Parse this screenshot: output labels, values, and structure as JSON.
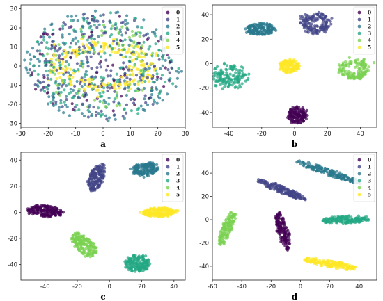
{
  "chart_data": [
    {
      "type": "scatter",
      "panel_label": "a",
      "xlim": [
        -30,
        30
      ],
      "ylim": [
        -32,
        32
      ],
      "xticks": [
        -30,
        -20,
        -10,
        0,
        10,
        20,
        30
      ],
      "yticks": [
        -30,
        -20,
        -10,
        0,
        10,
        20,
        30
      ],
      "legend": {
        "position": "top-right",
        "entries": [
          "0",
          "1",
          "2",
          "3",
          "4",
          "5"
        ]
      },
      "clusters": [
        {
          "label": "0",
          "shape": "diffuse",
          "cx": 0,
          "cy": 0,
          "r_in": 0,
          "r_out": 28,
          "n": 60
        },
        {
          "label": "1",
          "shape": "diffuse",
          "cx": 0,
          "cy": 0,
          "r_in": 0,
          "r_out": 28,
          "n": 180
        },
        {
          "label": "2",
          "shape": "diffuse",
          "cx": 0,
          "cy": 0,
          "r_in": 4,
          "r_out": 29,
          "n": 220
        },
        {
          "label": "3",
          "shape": "diffuse",
          "cx": 0,
          "cy": 0,
          "r_in": 4,
          "r_out": 28,
          "n": 180
        },
        {
          "label": "4",
          "shape": "diffuse",
          "cx": 0,
          "cy": 0,
          "r_in": 6,
          "r_out": 22,
          "n": 80
        },
        {
          "label": "5",
          "shape": "ring",
          "cx": 0,
          "cy": 0,
          "rx": 16,
          "ry": 11,
          "spread": 3,
          "n": 200
        }
      ]
    },
    {
      "type": "scatter",
      "panel_label": "b",
      "xlim": [
        -50,
        50
      ],
      "ylim": [
        -52,
        48
      ],
      "xticks": [
        -40,
        -20,
        0,
        20,
        40
      ],
      "yticks": [
        -40,
        -20,
        0,
        20,
        40
      ],
      "legend": {
        "position": "top-right",
        "entries": [
          "0",
          "1",
          "2",
          "3",
          "4",
          "5"
        ]
      },
      "clusters": [
        {
          "label": "0",
          "shape": "blob",
          "cx": 2,
          "cy": -42,
          "rx": 6,
          "ry": 7,
          "angle": 0,
          "n": 160
        },
        {
          "label": "1",
          "shape": "ring",
          "cx": 13,
          "cy": 33,
          "rx": 7,
          "ry": 6,
          "spread": 2.2,
          "n": 150
        },
        {
          "label": "2",
          "shape": "blob",
          "cx": -21,
          "cy": 28,
          "rx": 9,
          "ry": 5,
          "angle": 0,
          "n": 160
        },
        {
          "label": "3",
          "shape": "ring",
          "cx": -39,
          "cy": -11,
          "rx": 7,
          "ry": 6.5,
          "spread": 2.5,
          "n": 140
        },
        {
          "label": "4",
          "shape": "ring",
          "cx": 36,
          "cy": -5,
          "rx": 7,
          "ry": 6,
          "spread": 1.8,
          "n": 150
        },
        {
          "label": "5",
          "shape": "blob",
          "cx": -3,
          "cy": -2,
          "rx": 6,
          "ry": 5.5,
          "angle": 0,
          "n": 140
        }
      ]
    },
    {
      "type": "scatter",
      "panel_label": "c",
      "xlim": [
        -55,
        47
      ],
      "ylim": [
        -52,
        46
      ],
      "xticks": [
        -40,
        -20,
        0,
        20,
        40
      ],
      "yticks": [
        -40,
        -20,
        0,
        20,
        40
      ],
      "legend": {
        "position": "top-right",
        "entries": [
          "0",
          "1",
          "2",
          "3",
          "4",
          "5"
        ]
      },
      "clusters": [
        {
          "label": "0",
          "shape": "blob",
          "cx": -40,
          "cy": 1,
          "rx": 11,
          "ry": 4.5,
          "angle": -8,
          "n": 180
        },
        {
          "label": "1",
          "shape": "blob",
          "cx": -8,
          "cy": 27,
          "rx": 4.5,
          "ry": 11,
          "angle": -15,
          "n": 160
        },
        {
          "label": "2",
          "shape": "blob",
          "cx": 22,
          "cy": 33,
          "rx": 8.5,
          "ry": 5,
          "angle": 10,
          "n": 170
        },
        {
          "label": "3",
          "shape": "blob",
          "cx": 17,
          "cy": -39,
          "rx": 8,
          "ry": 6.5,
          "angle": 0,
          "n": 170
        },
        {
          "label": "4",
          "shape": "blob",
          "cx": -16,
          "cy": -25,
          "rx": 5.5,
          "ry": 11,
          "angle": 40,
          "n": 170
        },
        {
          "label": "5",
          "shape": "blob",
          "cx": 31,
          "cy": 0,
          "rx": 11,
          "ry": 3.5,
          "angle": 0,
          "n": 180
        }
      ]
    },
    {
      "type": "scatter",
      "panel_label": "d",
      "xlim": [
        -60,
        52
      ],
      "ylim": [
        -52,
        58
      ],
      "xticks": [
        -60,
        -40,
        -20,
        0,
        20,
        40
      ],
      "yticks": [
        -40,
        -20,
        0,
        20,
        40
      ],
      "legend": {
        "position": "top-right",
        "entries": [
          "0",
          "1",
          "2",
          "3",
          "4",
          "5"
        ]
      },
      "clusters": [
        {
          "label": "0",
          "shape": "blob",
          "cx": -12,
          "cy": -10,
          "rx": 3.5,
          "ry": 17,
          "angle": 12,
          "n": 150
        },
        {
          "label": "1",
          "shape": "blob",
          "cx": -13,
          "cy": 26,
          "rx": 18,
          "ry": 3,
          "angle": -27,
          "n": 160
        },
        {
          "label": "2",
          "shape": "blob",
          "cx": 19,
          "cy": 41,
          "rx": 24,
          "ry": 2.8,
          "angle": -23,
          "n": 170
        },
        {
          "label": "3",
          "shape": "blob",
          "cx": 31,
          "cy": 0,
          "rx": 17,
          "ry": 3.2,
          "angle": 3,
          "n": 160
        },
        {
          "label": "4",
          "shape": "blob",
          "cx": -50,
          "cy": -7,
          "rx": 3.5,
          "ry": 15,
          "angle": -18,
          "n": 140
        },
        {
          "label": "5",
          "shape": "blob",
          "cx": 20,
          "cy": -38,
          "rx": 19,
          "ry": 3,
          "angle": -13,
          "n": 160
        }
      ]
    }
  ],
  "colors": [
    "#440154",
    "#414487",
    "#2a788e",
    "#22a884",
    "#7ad151",
    "#fde725"
  ]
}
